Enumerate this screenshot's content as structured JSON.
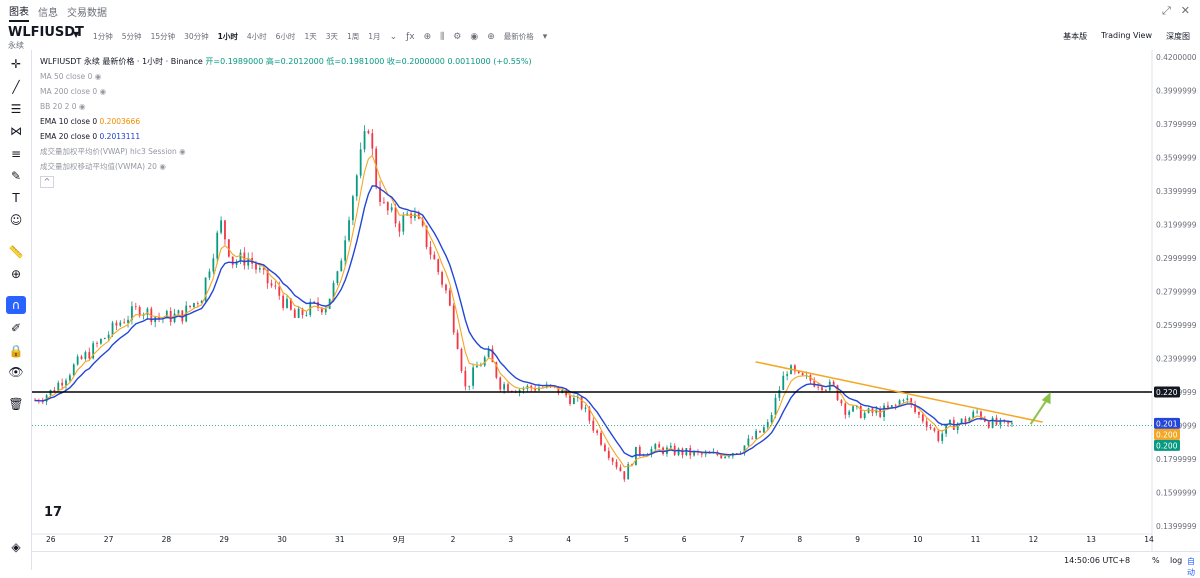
{
  "top_tabs": [
    "图表",
    "信息",
    "交易数据"
  ],
  "symbol": {
    "name": "WLFIUSDT",
    "sub": "永续"
  },
  "timeframes": [
    "1分钟",
    "5分钟",
    "15分钟",
    "30分钟",
    "1小时",
    "4小时",
    "6小时",
    "1天",
    "3天",
    "1周",
    "1月"
  ],
  "active_timeframe": "1小时",
  "price_menu": "最新价格",
  "right_tools": [
    "基本版",
    "Trading View",
    "深度图"
  ],
  "legend": {
    "title": "WLFIUSDT 永续 最新价格 · 1小时 · Binance",
    "open_label": "开=0.1989000",
    "high_label": "高=0.2012000",
    "low_label": "低=0.1981000",
    "close_label": "收=0.2000000",
    "change": "0.0011000 (+0.55%)",
    "ma50": "MA 50 close 0",
    "ma200": "MA 200 close 0",
    "bb": "BB 20 2 0",
    "ema10": "EMA 10 close 0",
    "ema10_value": "0.2003666",
    "ema20": "EMA 20 close 0",
    "ema20_value": "0.2013111",
    "vwap": "成交量加权平均价(VWAP) hlc3 Session",
    "vwma": "成交量加权移动平均值(VWMA) 20",
    "collapse": "^"
  },
  "bottom": {
    "clock": "14:50:06 UTC+8",
    "pct": "%",
    "log": "log",
    "auto": "自动"
  },
  "colors": {
    "up": "#089981",
    "down": "#f23645",
    "ema10": "#f5a623",
    "ema20": "#2346d8",
    "trend": "#f5a623",
    "arrow": "#8bc34a"
  },
  "chart_data": {
    "type": "candlestick",
    "y_ticks": [
      "0.4200000",
      "0.3999999",
      "0.3799999",
      "0.3599999",
      "0.3399999",
      "0.3199999",
      "0.2999999",
      "0.2799999",
      "0.2599999",
      "0.2399999",
      "0.2199999",
      "0.1999999",
      "0.1799999",
      "0.1599999",
      "0.1399999"
    ],
    "ylim": [
      0.1399999,
      0.42
    ],
    "x_labels": [
      "26",
      "27",
      "28",
      "29",
      "30",
      "31",
      "9月",
      "2",
      "3",
      "4",
      "5",
      "6",
      "7",
      "8",
      "9",
      "10",
      "11",
      "12",
      "13",
      "14"
    ],
    "price_tags": [
      {
        "label": "0.220",
        "value": 0.22,
        "bg": "#131722",
        "fg": "#ffffff"
      },
      {
        "label": "0.201",
        "value": 0.2013,
        "bg": "#2346d8",
        "fg": "#ffffff"
      },
      {
        "label": "0.200",
        "value": 0.2003,
        "bg": "#f5a623",
        "fg": "#ffffff"
      },
      {
        "label": "0.200",
        "value": 0.2,
        "bg": "#089981",
        "fg": "#ffffff"
      }
    ],
    "horizontal_line": {
      "value": 0.22,
      "color": "#000000"
    },
    "last_price_line": {
      "value": 0.2,
      "color": "#089981"
    },
    "trend_line": {
      "start": [
        "7",
        0.238
      ],
      "end": [
        "12",
        0.202
      ]
    },
    "close_series": [
      [
        0,
        0.215
      ],
      [
        8,
        0.22
      ],
      [
        20,
        0.235
      ],
      [
        32,
        0.248
      ],
      [
        44,
        0.262
      ],
      [
        54,
        0.27
      ],
      [
        64,
        0.264
      ],
      [
        76,
        0.266
      ],
      [
        86,
        0.278
      ],
      [
        92,
        0.305
      ],
      [
        96,
        0.32
      ],
      [
        102,
        0.298
      ],
      [
        110,
        0.3
      ],
      [
        118,
        0.288
      ],
      [
        126,
        0.278
      ],
      [
        134,
        0.264
      ],
      [
        142,
        0.27
      ],
      [
        150,
        0.272
      ],
      [
        156,
        0.288
      ],
      [
        162,
        0.328
      ],
      [
        168,
        0.36
      ],
      [
        172,
        0.38
      ],
      [
        176,
        0.345
      ],
      [
        180,
        0.33
      ],
      [
        188,
        0.32
      ],
      [
        194,
        0.328
      ],
      [
        200,
        0.315
      ],
      [
        206,
        0.298
      ],
      [
        212,
        0.28
      ],
      [
        218,
        0.25
      ],
      [
        222,
        0.222
      ],
      [
        228,
        0.235
      ],
      [
        234,
        0.242
      ],
      [
        240,
        0.225
      ],
      [
        250,
        0.222
      ],
      [
        260,
        0.223
      ],
      [
        270,
        0.221
      ],
      [
        282,
        0.212
      ],
      [
        290,
        0.195
      ],
      [
        298,
        0.18
      ],
      [
        304,
        0.17
      ],
      [
        310,
        0.184
      ],
      [
        320,
        0.186
      ],
      [
        334,
        0.184
      ],
      [
        346,
        0.182
      ],
      [
        356,
        0.183
      ],
      [
        364,
        0.186
      ],
      [
        370,
        0.192
      ],
      [
        378,
        0.2
      ],
      [
        384,
        0.222
      ],
      [
        388,
        0.234
      ],
      [
        394,
        0.228
      ],
      [
        400,
        0.227
      ],
      [
        406,
        0.225
      ],
      [
        412,
        0.222
      ],
      [
        418,
        0.21
      ],
      [
        428,
        0.207
      ],
      [
        436,
        0.208
      ],
      [
        444,
        0.211
      ],
      [
        448,
        0.218
      ],
      [
        454,
        0.208
      ],
      [
        460,
        0.202
      ],
      [
        466,
        0.193
      ],
      [
        472,
        0.2
      ],
      [
        480,
        0.203
      ],
      [
        486,
        0.208
      ],
      [
        492,
        0.202
      ],
      [
        498,
        0.2
      ],
      [
        504,
        0.2
      ]
    ]
  }
}
